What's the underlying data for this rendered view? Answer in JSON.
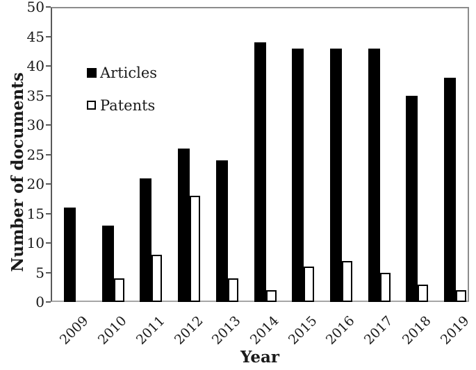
{
  "figure": {
    "background": "#ffffff",
    "bar_color": "#000000",
    "open_bar_fill": "#ffffff",
    "open_bar_border": "#000000",
    "frame_color": "#8c8c8c",
    "axis_color": "#595959"
  },
  "legend": {
    "items": [
      {
        "label": "Articles",
        "swatch": "filled-square-icon"
      },
      {
        "label": "Patents",
        "swatch": "open-square-icon"
      }
    ]
  },
  "chart_data": {
    "type": "bar",
    "title": "",
    "xlabel": "Year",
    "ylabel": "Number of documents",
    "categories": [
      "2009",
      "2010",
      "2011",
      "2012",
      "2013",
      "2014",
      "2015",
      "2016",
      "2017",
      "2018",
      "2019"
    ],
    "series": [
      {
        "name": "Articles",
        "style": "solid",
        "color": "#000000",
        "values": [
          16,
          13,
          21,
          26,
          24,
          44,
          43,
          43,
          43,
          35,
          38
        ]
      },
      {
        "name": "Patents",
        "style": "open",
        "color": "#ffffff",
        "border": "#000000",
        "values": [
          0,
          4,
          8,
          18,
          4,
          2,
          6,
          7,
          5,
          3,
          2
        ]
      }
    ],
    "ylim": [
      0,
      50
    ],
    "ytick_step": 5,
    "ytick_labels": [
      "0",
      "5",
      "10",
      "15",
      "20",
      "25",
      "30",
      "35",
      "40",
      "45",
      "50"
    ],
    "grid": false,
    "legend_position": "inside-top-left"
  }
}
